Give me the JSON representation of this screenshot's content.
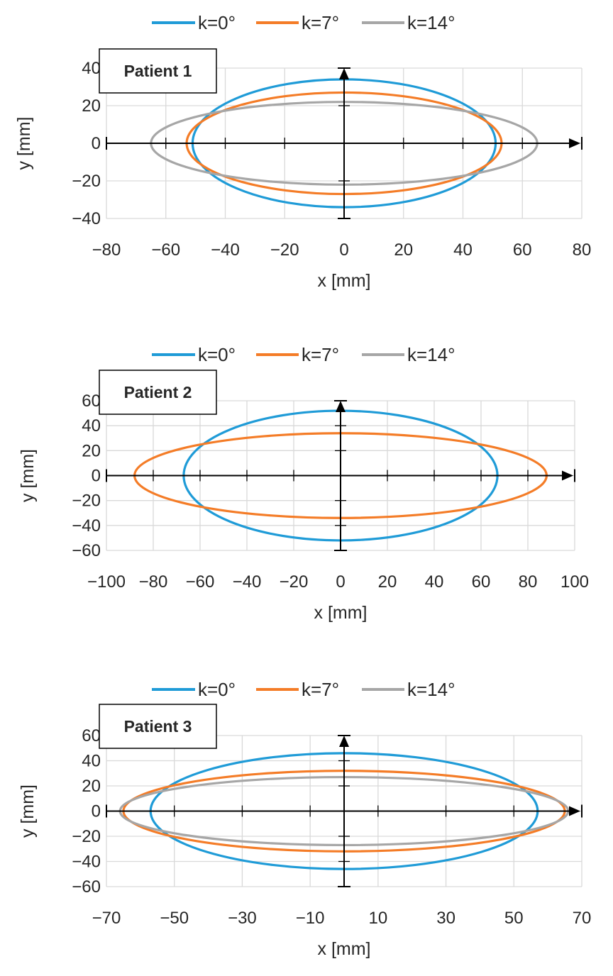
{
  "chart_data": [
    {
      "type": "line",
      "title": "Patient 1",
      "xlabel": "x [mm]",
      "ylabel": "y [mm]",
      "xlim": [
        -80,
        80
      ],
      "ylim": [
        -40,
        40
      ],
      "xticks": [
        -80,
        -60,
        -40,
        -20,
        0,
        20,
        40,
        60,
        80
      ],
      "xtick_labels": [
        "−80",
        "−60",
        "−40",
        "−20",
        "0",
        "20",
        "40",
        "60",
        "80"
      ],
      "yticks": [
        -40,
        -20,
        0,
        20,
        40
      ],
      "ytick_labels": [
        "−40",
        "−20",
        "0",
        "20",
        "40"
      ],
      "legend": [
        "k=0°",
        "k=7°",
        "k=14°"
      ],
      "legend_position": "top",
      "grid": true,
      "series": [
        {
          "name": "k=0°",
          "color": "#1f9bd7",
          "semi_axis_x": 51,
          "semi_axis_y": 34
        },
        {
          "name": "k=7°",
          "color": "#f47c27",
          "semi_axis_x": 53,
          "semi_axis_y": 27
        },
        {
          "name": "k=14°",
          "color": "#a6a6a6",
          "semi_axis_x": 65,
          "semi_axis_y": 22
        }
      ]
    },
    {
      "type": "line",
      "title": "Patient 2",
      "xlabel": "x [mm]",
      "ylabel": "y [mm]",
      "xlim": [
        -100,
        100
      ],
      "ylim": [
        -60,
        60
      ],
      "xticks": [
        -100,
        -80,
        -60,
        -40,
        -20,
        0,
        20,
        40,
        60,
        80,
        100
      ],
      "xtick_labels": [
        "−100",
        "−80",
        "−60",
        "−40",
        "−20",
        "0",
        "20",
        "40",
        "60",
        "80",
        "100"
      ],
      "yticks": [
        -60,
        -40,
        -20,
        0,
        20,
        40,
        60
      ],
      "ytick_labels": [
        "−60",
        "−40",
        "−20",
        "0",
        "20",
        "40",
        "60"
      ],
      "legend": [
        "k=0°",
        "k=7°",
        "k=14°"
      ],
      "legend_position": "top",
      "grid": true,
      "series": [
        {
          "name": "k=0°",
          "color": "#1f9bd7",
          "semi_axis_x": 67,
          "semi_axis_y": 52
        },
        {
          "name": "k=7°",
          "color": "#f47c27",
          "semi_axis_x": 88,
          "semi_axis_y": 34
        },
        {
          "name": "k=14°",
          "color": "#a6a6a6",
          "semi_axis_x": null,
          "semi_axis_y": null
        }
      ]
    },
    {
      "type": "line",
      "title": "Patient 3",
      "xlabel": "x [mm]",
      "ylabel": "y [mm]",
      "xlim": [
        -70,
        70
      ],
      "ylim": [
        -60,
        60
      ],
      "xticks": [
        -70,
        -50,
        -30,
        -10,
        10,
        30,
        50,
        70
      ],
      "xtick_labels": [
        "−70",
        "−50",
        "−30",
        "−10",
        "10",
        "30",
        "50",
        "70"
      ],
      "yticks": [
        -60,
        -40,
        -20,
        0,
        20,
        40,
        60
      ],
      "ytick_labels": [
        "−60",
        "−40",
        "−20",
        "0",
        "20",
        "40",
        "60"
      ],
      "legend": [
        "k=0°",
        "k=7°",
        "k=14°"
      ],
      "legend_position": "top",
      "grid": true,
      "series": [
        {
          "name": "k=0°",
          "color": "#1f9bd7",
          "semi_axis_x": 57,
          "semi_axis_y": 46
        },
        {
          "name": "k=7°",
          "color": "#f47c27",
          "semi_axis_x": 65,
          "semi_axis_y": 32
        },
        {
          "name": "k=14°",
          "color": "#a6a6a6",
          "semi_axis_x": 66,
          "semi_axis_y": 27
        }
      ]
    }
  ]
}
